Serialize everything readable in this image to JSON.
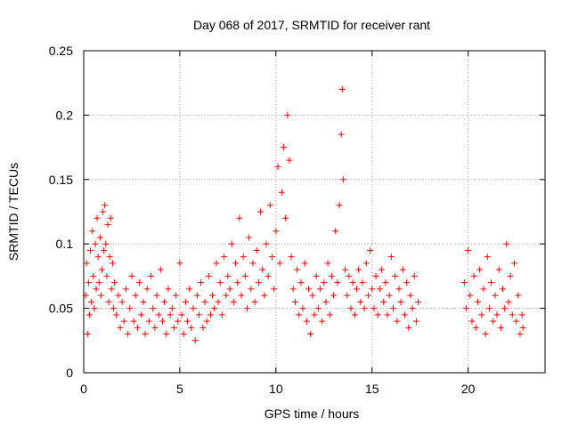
{
  "chart_data": {
    "type": "scatter",
    "title": "Day 068 of 2017, SRMTID for receiver rant",
    "xlabel": "GPS time / hours",
    "ylabel": "SRMTID / TECUs",
    "xlim": [
      0,
      24
    ],
    "ylim": [
      0,
      0.25
    ],
    "xticks": [
      0,
      5,
      10,
      15,
      20
    ],
    "xtick_labels": [
      "0",
      "5",
      "10",
      "15",
      "20"
    ],
    "yticks": [
      0,
      0.05,
      0.1,
      0.15,
      0.2,
      0.25
    ],
    "ytick_labels": [
      "0",
      "0.05",
      "0.1",
      "0.15",
      "0.2",
      "0.25"
    ],
    "grid": true,
    "marker": "+",
    "color": "#ff0000",
    "series": [
      {
        "name": "SRMTID",
        "points": [
          [
            0.1,
            0.06
          ],
          [
            0.15,
            0.085
          ],
          [
            0.2,
            0.03
          ],
          [
            0.25,
            0.07
          ],
          [
            0.3,
            0.045
          ],
          [
            0.35,
            0.095
          ],
          [
            0.4,
            0.055
          ],
          [
            0.45,
            0.11
          ],
          [
            0.5,
            0.075
          ],
          [
            0.55,
            0.05
          ],
          [
            0.6,
            0.1
          ],
          [
            0.65,
            0.065
          ],
          [
            0.7,
            0.12
          ],
          [
            0.75,
            0.09
          ],
          [
            0.8,
            0.07
          ],
          [
            0.85,
            0.105
          ],
          [
            0.9,
            0.06
          ],
          [
            0.95,
            0.08
          ],
          [
            1.0,
            0.125
          ],
          [
            1.05,
            0.095
          ],
          [
            1.1,
            0.13
          ],
          [
            1.15,
            0.1
          ],
          [
            1.2,
            0.075
          ],
          [
            1.25,
            0.115
          ],
          [
            1.3,
            0.055
          ],
          [
            1.35,
            0.09
          ],
          [
            1.4,
            0.12
          ],
          [
            1.45,
            0.065
          ],
          [
            1.5,
            0.085
          ],
          [
            1.55,
            0.05
          ],
          [
            1.6,
            0.07
          ],
          [
            1.7,
            0.045
          ],
          [
            1.8,
            0.06
          ],
          [
            1.9,
            0.035
          ],
          [
            2.0,
            0.055
          ],
          [
            2.1,
            0.04
          ],
          [
            2.2,
            0.065
          ],
          [
            2.3,
            0.03
          ],
          [
            2.4,
            0.05
          ],
          [
            2.5,
            0.075
          ],
          [
            2.6,
            0.04
          ],
          [
            2.7,
            0.06
          ],
          [
            2.8,
            0.035
          ],
          [
            2.9,
            0.07
          ],
          [
            3.0,
            0.045
          ],
          [
            3.1,
            0.055
          ],
          [
            3.2,
            0.03
          ],
          [
            3.3,
            0.065
          ],
          [
            3.4,
            0.04
          ],
          [
            3.5,
            0.075
          ],
          [
            3.6,
            0.05
          ],
          [
            3.7,
            0.035
          ],
          [
            3.8,
            0.06
          ],
          [
            3.9,
            0.045
          ],
          [
            4.0,
            0.08
          ],
          [
            4.1,
            0.04
          ],
          [
            4.2,
            0.055
          ],
          [
            4.3,
            0.03
          ],
          [
            4.4,
            0.065
          ],
          [
            4.5,
            0.045
          ],
          [
            4.6,
            0.05
          ],
          [
            4.7,
            0.035
          ],
          [
            4.8,
            0.06
          ],
          [
            4.9,
            0.04
          ],
          [
            5.0,
            0.085
          ],
          [
            5.1,
            0.045
          ],
          [
            5.2,
            0.03
          ],
          [
            5.3,
            0.055
          ],
          [
            5.4,
            0.04
          ],
          [
            5.5,
            0.065
          ],
          [
            5.6,
            0.035
          ],
          [
            5.7,
            0.05
          ],
          [
            5.8,
            0.025
          ],
          [
            5.9,
            0.06
          ],
          [
            6.0,
            0.045
          ],
          [
            6.1,
            0.07
          ],
          [
            6.2,
            0.035
          ],
          [
            6.3,
            0.055
          ],
          [
            6.4,
            0.04
          ],
          [
            6.5,
            0.075
          ],
          [
            6.6,
            0.045
          ],
          [
            6.7,
            0.06
          ],
          [
            6.8,
            0.05
          ],
          [
            6.9,
            0.085
          ],
          [
            7.0,
            0.055
          ],
          [
            7.1,
            0.07
          ],
          [
            7.2,
            0.045
          ],
          [
            7.3,
            0.09
          ],
          [
            7.4,
            0.06
          ],
          [
            7.5,
            0.075
          ],
          [
            7.6,
            0.065
          ],
          [
            7.7,
            0.1
          ],
          [
            7.8,
            0.055
          ],
          [
            7.9,
            0.085
          ],
          [
            8.0,
            0.07
          ],
          [
            8.1,
            0.12
          ],
          [
            8.2,
            0.06
          ],
          [
            8.3,
            0.09
          ],
          [
            8.4,
            0.075
          ],
          [
            8.5,
            0.05
          ],
          [
            8.6,
            0.105
          ],
          [
            8.7,
            0.065
          ],
          [
            8.8,
            0.085
          ],
          [
            8.9,
            0.055
          ],
          [
            9.0,
            0.095
          ],
          [
            9.1,
            0.07
          ],
          [
            9.2,
            0.125
          ],
          [
            9.3,
            0.08
          ],
          [
            9.4,
            0.06
          ],
          [
            9.5,
            0.1
          ],
          [
            9.6,
            0.075
          ],
          [
            9.7,
            0.13
          ],
          [
            9.8,
            0.09
          ],
          [
            9.9,
            0.065
          ],
          [
            10.0,
            0.11
          ],
          [
            10.1,
            0.16
          ],
          [
            10.2,
            0.085
          ],
          [
            10.3,
            0.14
          ],
          [
            10.4,
            0.175
          ],
          [
            10.5,
            0.12
          ],
          [
            10.6,
            0.2
          ],
          [
            10.7,
            0.165
          ],
          [
            10.8,
            0.09
          ],
          [
            10.9,
            0.065
          ],
          [
            11.0,
            0.055
          ],
          [
            11.1,
            0.08
          ],
          [
            11.2,
            0.045
          ],
          [
            11.3,
            0.07
          ],
          [
            11.4,
            0.05
          ],
          [
            11.5,
            0.085
          ],
          [
            11.6,
            0.04
          ],
          [
            11.7,
            0.065
          ],
          [
            11.8,
            0.03
          ],
          [
            11.9,
            0.06
          ],
          [
            12.0,
            0.045
          ],
          [
            12.1,
            0.075
          ],
          [
            12.2,
            0.05
          ],
          [
            12.3,
            0.065
          ],
          [
            12.4,
            0.04
          ],
          [
            12.5,
            0.07
          ],
          [
            12.6,
            0.055
          ],
          [
            12.7,
            0.085
          ],
          [
            12.8,
            0.045
          ],
          [
            12.9,
            0.075
          ],
          [
            13.0,
            0.06
          ],
          [
            13.1,
            0.11
          ],
          [
            13.2,
            0.07
          ],
          [
            13.3,
            0.13
          ],
          [
            13.4,
            0.185
          ],
          [
            13.45,
            0.22
          ],
          [
            13.5,
            0.15
          ],
          [
            13.6,
            0.08
          ],
          [
            13.7,
            0.06
          ],
          [
            13.8,
            0.075
          ],
          [
            13.9,
            0.05
          ],
          [
            14.0,
            0.07
          ],
          [
            14.1,
            0.045
          ],
          [
            14.2,
            0.065
          ],
          [
            14.3,
            0.08
          ],
          [
            14.4,
            0.055
          ],
          [
            14.5,
            0.07
          ],
          [
            14.6,
            0.05
          ],
          [
            14.7,
            0.085
          ],
          [
            14.8,
            0.06
          ],
          [
            14.9,
            0.095
          ],
          [
            15.0,
            0.065
          ],
          [
            15.1,
            0.05
          ],
          [
            15.2,
            0.075
          ],
          [
            15.3,
            0.045
          ],
          [
            15.4,
            0.065
          ],
          [
            15.5,
            0.08
          ],
          [
            15.6,
            0.055
          ],
          [
            15.7,
            0.07
          ],
          [
            15.8,
            0.045
          ],
          [
            15.9,
            0.06
          ],
          [
            16.0,
            0.09
          ],
          [
            16.1,
            0.05
          ],
          [
            16.2,
            0.075
          ],
          [
            16.3,
            0.04
          ],
          [
            16.4,
            0.065
          ],
          [
            16.5,
            0.055
          ],
          [
            16.6,
            0.08
          ],
          [
            16.7,
            0.045
          ],
          [
            16.8,
            0.07
          ],
          [
            16.9,
            0.035
          ],
          [
            17.0,
            0.06
          ],
          [
            17.1,
            0.05
          ],
          [
            17.2,
            0.075
          ],
          [
            17.3,
            0.04
          ],
          [
            17.4,
            0.055
          ],
          [
            19.8,
            0.07
          ],
          [
            19.9,
            0.05
          ],
          [
            20.0,
            0.095
          ],
          [
            20.1,
            0.06
          ],
          [
            20.2,
            0.04
          ],
          [
            20.3,
            0.075
          ],
          [
            20.4,
            0.035
          ],
          [
            20.5,
            0.055
          ],
          [
            20.6,
            0.08
          ],
          [
            20.7,
            0.045
          ],
          [
            20.8,
            0.065
          ],
          [
            20.9,
            0.03
          ],
          [
            21.0,
            0.09
          ],
          [
            21.1,
            0.05
          ],
          [
            21.2,
            0.07
          ],
          [
            21.3,
            0.04
          ],
          [
            21.4,
            0.06
          ],
          [
            21.5,
            0.045
          ],
          [
            21.6,
            0.08
          ],
          [
            21.7,
            0.035
          ],
          [
            21.8,
            0.065
          ],
          [
            21.9,
            0.05
          ],
          [
            22.0,
            0.1
          ],
          [
            22.1,
            0.055
          ],
          [
            22.2,
            0.075
          ],
          [
            22.3,
            0.045
          ],
          [
            22.4,
            0.085
          ],
          [
            22.5,
            0.04
          ],
          [
            22.6,
            0.06
          ],
          [
            22.7,
            0.03
          ],
          [
            22.8,
            0.045
          ],
          [
            22.85,
            0.035
          ]
        ]
      }
    ]
  }
}
